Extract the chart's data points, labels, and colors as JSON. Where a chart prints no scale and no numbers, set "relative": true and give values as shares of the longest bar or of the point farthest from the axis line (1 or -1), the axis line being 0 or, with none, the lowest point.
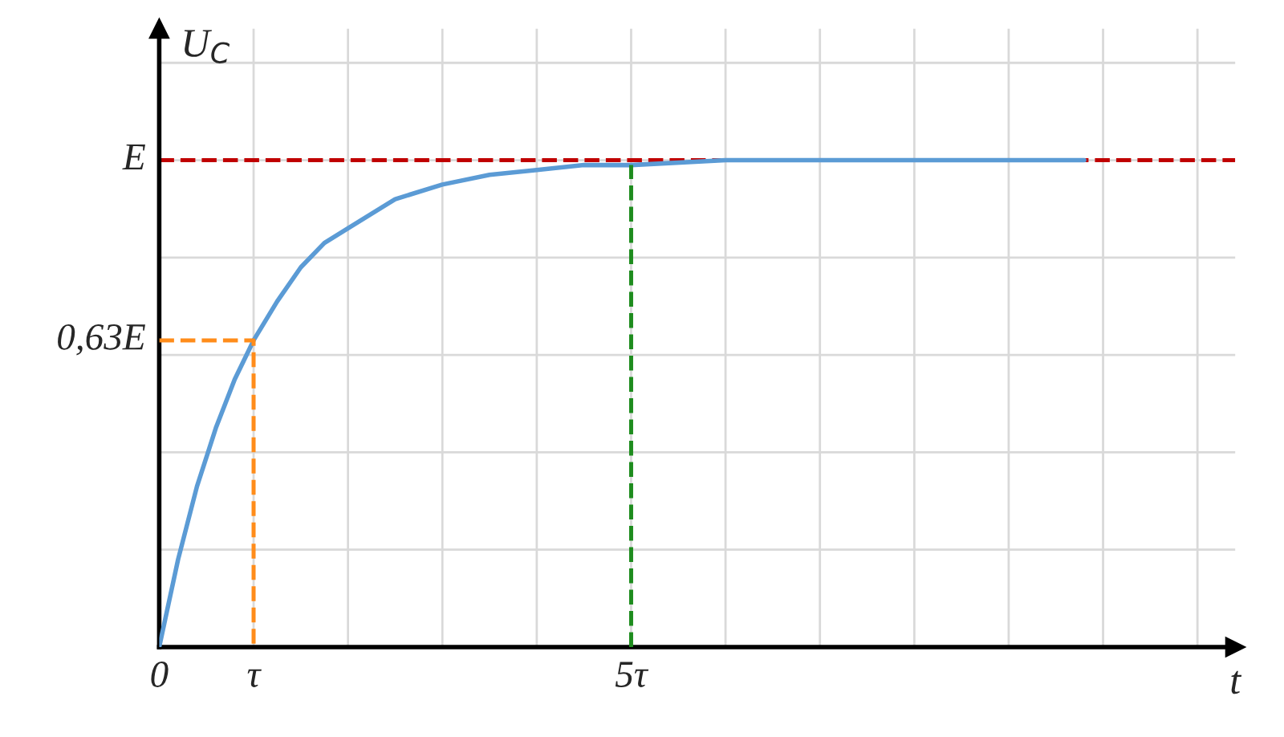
{
  "chart_data": {
    "type": "line",
    "xlabel": "t",
    "ylabel": "U$_{C}$",
    "relative": true,
    "x": [
      0,
      0.2,
      0.4,
      0.6,
      0.8,
      1,
      1.25,
      1.5,
      1.75,
      2,
      2.5,
      3,
      3.5,
      4,
      4.5,
      5,
      6,
      7,
      8,
      9,
      9.8
    ],
    "series": [
      {
        "color": "#5b9bd5",
        "values": [
          0,
          0.18,
          0.33,
          0.45,
          0.55,
          0.63,
          0.71,
          0.78,
          0.83,
          0.86,
          0.92,
          0.95,
          0.97,
          0.98,
          0.99,
          0.99,
          1.0,
          1.0,
          1.0,
          1.0,
          1.0
        ]
      },
      {
        "color": "#ff8c1a",
        "line_style": "dashed",
        "x": [
          0,
          1,
          1
        ],
        "values": [
          0.63,
          0.63,
          0
        ]
      },
      {
        "color": "#1e8c1e",
        "line_style": "dashed",
        "x": [
          5,
          5
        ],
        "values": [
          0,
          0.99
        ]
      }
    ],
    "ref_lines": [
      {
        "axis": "y",
        "value": 1,
        "label": "E",
        "color": "#c00000",
        "line_style": "dashed"
      }
    ],
    "annotations": [
      {
        "text": "0,63E",
        "x": 0,
        "y": 0.63
      }
    ],
    "xlim": [
      0,
      11.4
    ],
    "xticks": [
      {
        "value": 0,
        "label": "0"
      },
      {
        "value": 1,
        "label": "τ"
      },
      {
        "value": 2,
        "label": null
      },
      {
        "value": 3,
        "label": null
      },
      {
        "value": 4,
        "label": null
      },
      {
        "value": 5,
        "label": "5τ"
      },
      {
        "value": 6,
        "label": null
      },
      {
        "value": 7,
        "label": null
      },
      {
        "value": 8,
        "label": null
      },
      {
        "value": 9,
        "label": null
      },
      {
        "value": 10,
        "label": null
      },
      {
        "value": 11,
        "label": null
      }
    ],
    "grid": true,
    "marker": "none",
    "line_style": "solid"
  }
}
